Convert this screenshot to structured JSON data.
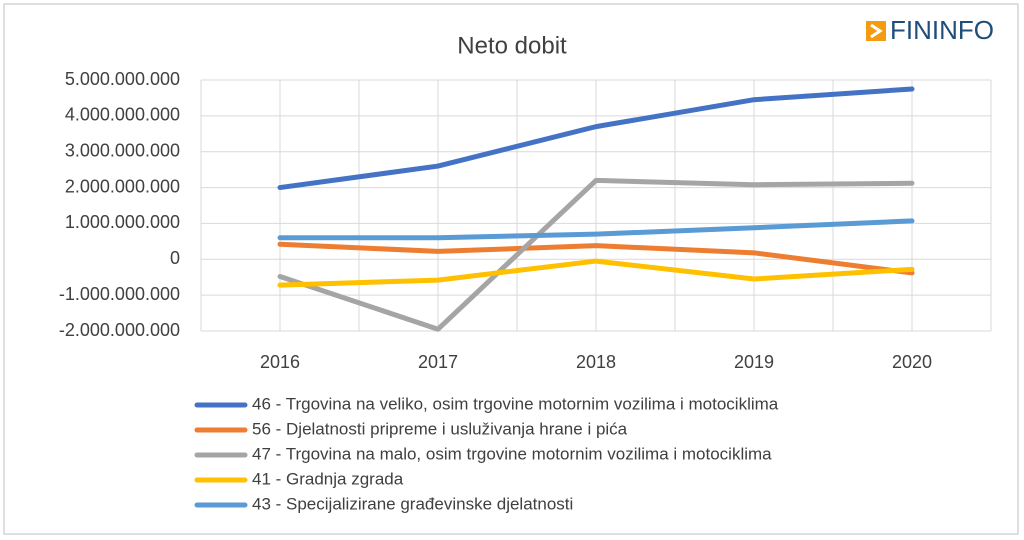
{
  "logo": "FININFO",
  "chart_data": {
    "type": "line",
    "title": "Neto dobit",
    "categories": [
      "2016",
      "2017",
      "2018",
      "2019",
      "2020"
    ],
    "series": [
      {
        "name": "46 - Trgovina na veliko, osim trgovine motornim vozilima i motociklima",
        "color": "#4472c4",
        "values": [
          2000000000,
          2600000000,
          3700000000,
          4450000000,
          4750000000
        ]
      },
      {
        "name": "56 - Djelatnosti pripreme i usluživanja hrane i pića",
        "color": "#ed7d31",
        "values": [
          420000000,
          220000000,
          380000000,
          180000000,
          -380000000
        ]
      },
      {
        "name": "47 - Trgovina na malo, osim trgovine motornim vozilima i motociklima",
        "color": "#a5a5a5",
        "values": [
          -480000000,
          -1950000000,
          2200000000,
          2080000000,
          2120000000
        ]
      },
      {
        "name": "41 - Gradnja zgrada",
        "color": "#ffc000",
        "values": [
          -720000000,
          -580000000,
          -50000000,
          -550000000,
          -280000000
        ]
      },
      {
        "name": "43 - Specijalizirane građevinske djelatnosti",
        "color": "#5b9bd5",
        "values": [
          600000000,
          600000000,
          700000000,
          880000000,
          1070000000
        ]
      }
    ],
    "ylim": [
      -2000000000,
      5000000000
    ],
    "yticks": [
      {
        "value": -2000000000,
        "label": "-2.000.000.000"
      },
      {
        "value": -1000000000,
        "label": "-1.000.000.000"
      },
      0,
      {
        "value": 1000000000,
        "label": "1.000.000.000"
      },
      {
        "value": 2000000000,
        "label": "2.000.000.000"
      },
      {
        "value": 3000000000,
        "label": "3.000.000.000"
      },
      {
        "value": 4000000000,
        "label": "4.000.000.000"
      },
      {
        "value": 5000000000,
        "label": "5.000.000.000"
      }
    ],
    "grid": true,
    "legend": "bottom"
  }
}
